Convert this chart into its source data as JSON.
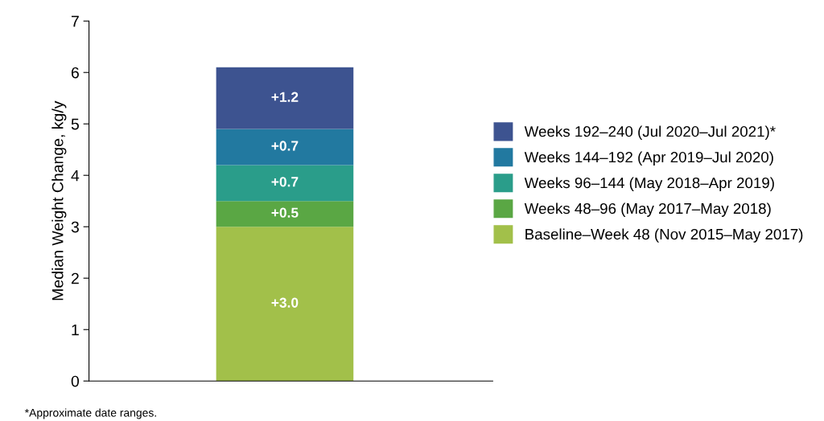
{
  "chart_data": {
    "type": "bar",
    "stacked": true,
    "categories": [
      null
    ],
    "ylabel": "Median Weight Change, kg/y",
    "ylim": [
      0,
      7
    ],
    "yticks": [
      0,
      1,
      2,
      3,
      4,
      5,
      6,
      7
    ],
    "grid": false,
    "legend": "right",
    "series": [
      {
        "name": "Baseline–Week 48 (Nov 2015–May 2017)",
        "color": "#a2c04a",
        "values": [
          3.0
        ],
        "value_labels": [
          "+3.0"
        ]
      },
      {
        "name": "Weeks 48–96 (May 2017–May 2018)",
        "color": "#5aa744",
        "values": [
          0.5
        ],
        "value_labels": [
          "+0.5"
        ]
      },
      {
        "name": "Weeks 96–144 (May 2018–Apr 2019)",
        "color": "#2a9d8a",
        "values": [
          0.7
        ],
        "value_labels": [
          "+0.7"
        ]
      },
      {
        "name": "Weeks 144–192 (Apr 2019–Jul 2020)",
        "color": "#2279a0",
        "values": [
          0.7
        ],
        "value_labels": [
          "+0.7"
        ]
      },
      {
        "name": "Weeks 192–240 (Jul 2020–Jul 2021)*",
        "color": "#3d5390",
        "values": [
          1.2
        ],
        "value_labels": [
          "+1.2"
        ]
      }
    ],
    "annotations": [
      "*Approximate date ranges."
    ]
  }
}
